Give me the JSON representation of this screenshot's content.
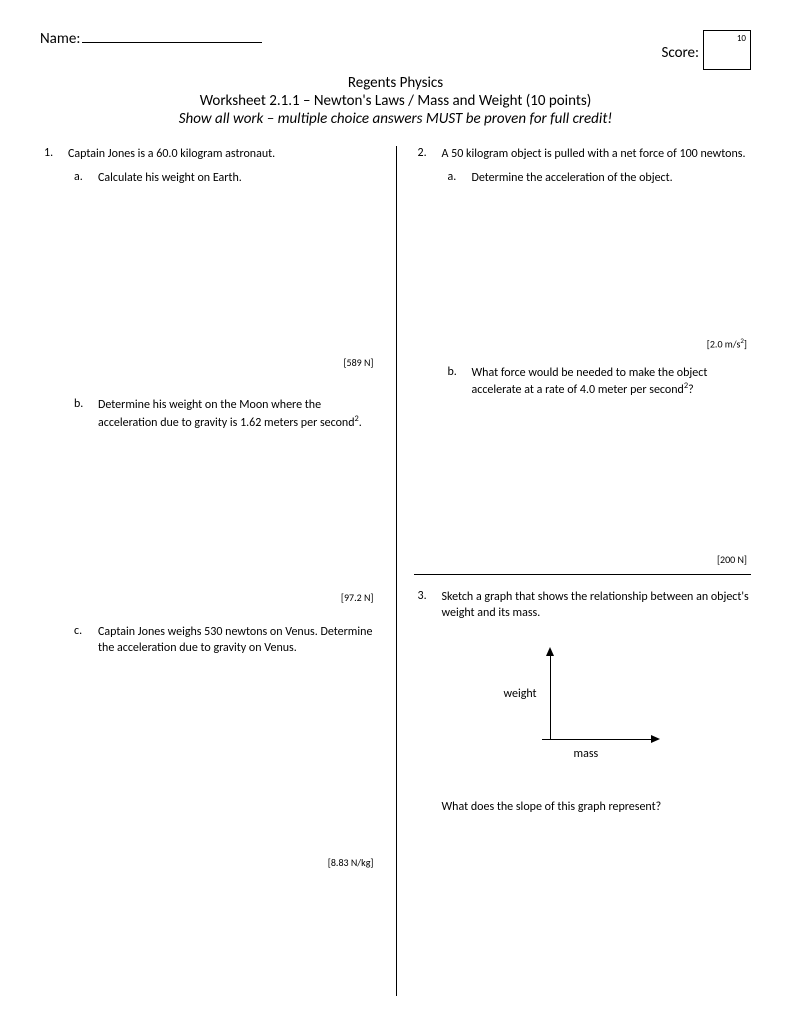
{
  "header": {
    "name_label": "Name:",
    "score_label": "Score:",
    "score_max": "10"
  },
  "title": {
    "line1": "Regents Physics",
    "line2": "Worksheet 2.1.1 – Newton's Laws / Mass and Weight (10 points)",
    "line3": "Show all work – multiple choice answers MUST be proven for full credit!"
  },
  "q1": {
    "num": "1.",
    "stem": "Captain Jones is a 60.0 kilogram astronaut.",
    "a": {
      "let": "a.",
      "text": "Calculate his weight on Earth.",
      "ans": "[589 N]"
    },
    "b": {
      "let": "b.",
      "text_html": "Determine his weight on the Moon where the acceleration due to gravity is 1.62 meters per second<sup>2</sup>.",
      "ans": "[97.2 N]"
    },
    "c": {
      "let": "c.",
      "text": "Captain Jones weighs 530 newtons on Venus. Determine the acceleration due to gravity on Venus.",
      "ans": "[8.83 N/kg]"
    }
  },
  "q2": {
    "num": "2.",
    "stem": "A 50 kilogram object is pulled with a net force of 100 newtons.",
    "a": {
      "let": "a.",
      "text": "Determine the acceleration of the object.",
      "ans_html": "[2.0 m/s<sup>2</sup>]"
    },
    "b": {
      "let": "b.",
      "text_html": "What force would be needed to make the object accelerate at a rate of 4.0 meter per second<sup>2</sup>?",
      "ans": "[200 N]"
    }
  },
  "q3": {
    "num": "3.",
    "stem": "Sketch a graph that shows the relationship between an object's weight and its mass.",
    "y_label": "weight",
    "x_label": "mass",
    "follow": "What does the slope of this graph represent?"
  },
  "graph": {
    "axis_color": "#000000",
    "arrow_size": 9,
    "y_axis_height": 90,
    "x_axis_width": 110
  }
}
